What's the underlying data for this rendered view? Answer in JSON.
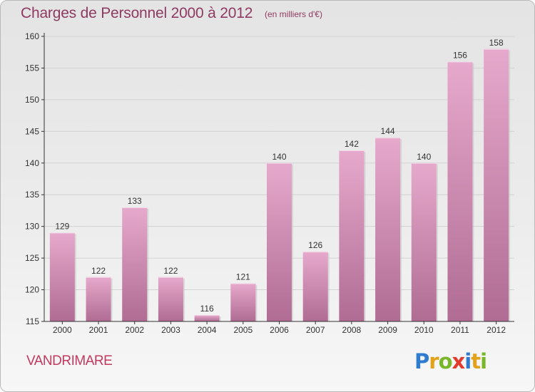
{
  "header": {
    "title": "Charges de Personnel 2000 à 2012",
    "unit": "(en milliers d'€)"
  },
  "footer": {
    "commune": "VANDRIMARE",
    "logo_text": "Proxiti"
  },
  "colors": {
    "title": "#8e3a61",
    "commune": "#c23a5f",
    "bar_top": "#e6a9cc",
    "bar_bottom": "#b06c93",
    "grid": "#d2d2d2",
    "axis": "#333333"
  },
  "chart_data": {
    "type": "bar",
    "title": "Charges de Personnel 2000 à 2012",
    "subtitle": "(en milliers d'€)",
    "xlabel": "",
    "ylabel": "",
    "categories": [
      "2000",
      "2001",
      "2002",
      "2003",
      "2004",
      "2005",
      "2006",
      "2007",
      "2008",
      "2009",
      "2010",
      "2011",
      "2012"
    ],
    "values": [
      129,
      122,
      133,
      122,
      116,
      121,
      140,
      126,
      142,
      144,
      140,
      156,
      158
    ],
    "ylim": [
      115,
      160
    ],
    "yticks": [
      115,
      120,
      125,
      130,
      135,
      140,
      145,
      150,
      155,
      160
    ],
    "grid": true,
    "data_labels": true
  }
}
